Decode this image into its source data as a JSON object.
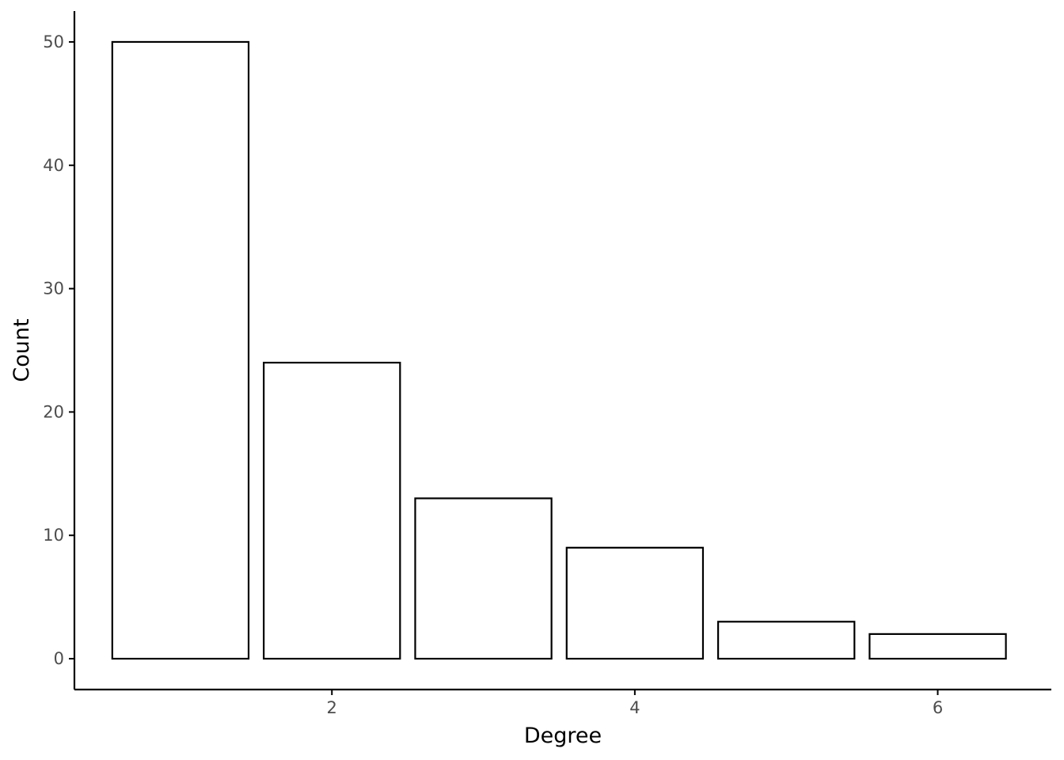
{
  "chart_data": {
    "type": "bar",
    "x": [
      1,
      2,
      3,
      4,
      5,
      6
    ],
    "values": [
      50,
      24,
      13,
      9,
      3,
      2
    ],
    "xlabel": "Degree",
    "ylabel": "Count",
    "xlim": [
      0.3,
      6.75
    ],
    "ylim": [
      -2.5,
      52.5
    ],
    "x_ticks": [
      2,
      4,
      6
    ],
    "y_ticks": [
      0,
      10,
      20,
      30,
      40,
      50
    ],
    "bar_fill": "#ffffff",
    "bar_outline": "#000000",
    "grid": false,
    "legend": "none"
  }
}
